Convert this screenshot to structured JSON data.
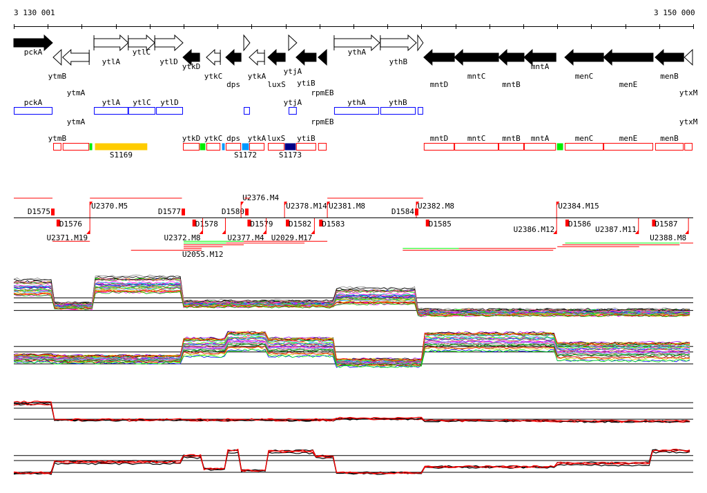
{
  "axis": {
    "start_label": "3 130 001",
    "end_label": "3 150 000",
    "start": 3130001,
    "end": 3150000,
    "tick_step": 1000
  },
  "colors": {
    "gene_forward": "#000000",
    "gene_box": "#0000ff",
    "transcript_box": "#ff0000",
    "green": "#00ee00",
    "yellow": "#ffcc00",
    "light_blue": "#0099ff",
    "navy": "#000088",
    "segment": "#ff0000"
  },
  "genes": [
    {
      "name": "pckA",
      "start": 3130001,
      "end": 3131140,
      "strand": "+",
      "filled": true
    },
    {
      "name": "ytmB",
      "start": 3131160,
      "end": 3131400,
      "strand": "-",
      "filled": false
    },
    {
      "name": "ytmA",
      "start": 3131440,
      "end": 3132220,
      "strand": "-",
      "filled": false
    },
    {
      "name": "ytlA",
      "start": 3132360,
      "end": 3133370,
      "strand": "+",
      "filled": false
    },
    {
      "name": "ytlC",
      "start": 3133370,
      "end": 3134150,
      "strand": "+",
      "filled": false
    },
    {
      "name": "ytlD",
      "start": 3134150,
      "end": 3134980,
      "strand": "+",
      "filled": false
    },
    {
      "name": "ytkD",
      "start": 3134980,
      "end": 3135470,
      "strand": "-",
      "filled": true
    },
    {
      "name": "ytkC",
      "start": 3135670,
      "end": 3136080,
      "strand": "-",
      "filled": false
    },
    {
      "name": "dps",
      "start": 3136240,
      "end": 3136690,
      "strand": "-",
      "filled": true
    },
    {
      "name": "",
      "start": 3136770,
      "end": 3136950,
      "strand": "+",
      "filled": false
    },
    {
      "name": "ytkA",
      "start": 3136930,
      "end": 3137380,
      "strand": "-",
      "filled": false
    },
    {
      "name": "luxS",
      "start": 3137480,
      "end": 3137990,
      "strand": "-",
      "filled": true
    },
    {
      "name": "ytjA",
      "start": 3138090,
      "end": 3138330,
      "strand": "+",
      "filled": false
    },
    {
      "name": "ytiB",
      "start": 3138310,
      "end": 3138900,
      "strand": "-",
      "filled": true
    },
    {
      "name": "rpmEB",
      "start": 3138960,
      "end": 3139210,
      "strand": "-",
      "filled": true
    },
    {
      "name": "ythA",
      "start": 3139430,
      "end": 3140770,
      "strand": "+",
      "filled": false
    },
    {
      "name": "ythB",
      "start": 3140790,
      "end": 3141850,
      "strand": "+",
      "filled": false
    },
    {
      "name": "",
      "start": 3141890,
      "end": 3142050,
      "strand": "+",
      "filled": false
    },
    {
      "name": "mntD",
      "start": 3142070,
      "end": 3142970,
      "strand": "-",
      "filled": true
    },
    {
      "name": "mntC",
      "start": 3142970,
      "end": 3144270,
      "strand": "-",
      "filled": true
    },
    {
      "name": "mntB",
      "start": 3144270,
      "end": 3145020,
      "strand": "-",
      "filled": true
    },
    {
      "name": "mntA",
      "start": 3145020,
      "end": 3145960,
      "strand": "-",
      "filled": true
    },
    {
      "name": "menC",
      "start": 3146220,
      "end": 3147360,
      "strand": "-",
      "filled": true
    },
    {
      "name": "menE",
      "start": 3147360,
      "end": 3148820,
      "strand": "-",
      "filled": true
    },
    {
      "name": "menB",
      "start": 3148880,
      "end": 3149720,
      "strand": "-",
      "filled": true
    },
    {
      "name": "ytxM",
      "start": 3149740,
      "end": 3149980,
      "strand": "-",
      "filled": false
    }
  ],
  "forward_boxes": [
    {
      "name": "pckA",
      "start": 3130001,
      "end": 3131140
    },
    {
      "name": "ytlA",
      "start": 3132360,
      "end": 3133370
    },
    {
      "name": "ytlC",
      "start": 3133370,
      "end": 3134170
    },
    {
      "name": "ytlD",
      "start": 3134190,
      "end": 3134980
    },
    {
      "name": "",
      "start": 3136770,
      "end": 3136950
    },
    {
      "name": "ytjA",
      "start": 3138090,
      "end": 3138330
    },
    {
      "name": "ythA",
      "start": 3139430,
      "end": 3140750
    },
    {
      "name": "ythB",
      "start": 3140790,
      "end": 3141830
    },
    {
      "name": "",
      "start": 3141890,
      "end": 3142050
    }
  ],
  "transcript_boxes": [
    {
      "name": "ytmB",
      "start": 3131160,
      "end": 3131400,
      "kind": "gene"
    },
    {
      "name": "ytmA",
      "start": 3131440,
      "end": 3132220,
      "kind": "gene"
    },
    {
      "name": "",
      "start": 3132220,
      "end": 3132320,
      "kind": "green"
    },
    {
      "name": "S1169",
      "start": 3132380,
      "end": 3133940,
      "kind": "yellow",
      "label_below": true
    },
    {
      "name": "ytkD",
      "start": 3134980,
      "end": 3135470,
      "kind": "gene"
    },
    {
      "name": "",
      "start": 3135470,
      "end": 3135650,
      "kind": "green"
    },
    {
      "name": "ytkC",
      "start": 3135670,
      "end": 3136080,
      "kind": "gene"
    },
    {
      "name": "",
      "start": 3136120,
      "end": 3136220,
      "kind": "light_blue"
    },
    {
      "name": "dps",
      "start": 3136240,
      "end": 3136690,
      "kind": "gene"
    },
    {
      "name": "S1172",
      "start": 3136710,
      "end": 3136930,
      "kind": "light_blue",
      "label_below": true
    },
    {
      "name": "ytkA",
      "start": 3136930,
      "end": 3137380,
      "kind": "gene"
    },
    {
      "name": "luxS",
      "start": 3137480,
      "end": 3137970,
      "kind": "gene"
    },
    {
      "name": "S1173",
      "start": 3137970,
      "end": 3138310,
      "kind": "navy",
      "label_below": true
    },
    {
      "name": "ytiB",
      "start": 3138310,
      "end": 3138900,
      "kind": "gene"
    },
    {
      "name": "rpmEB",
      "start": 3138960,
      "end": 3139210,
      "kind": "gene"
    },
    {
      "name": "mntD",
      "start": 3142070,
      "end": 3142970,
      "kind": "gene"
    },
    {
      "name": "mntC",
      "start": 3142970,
      "end": 3144270,
      "kind": "gene"
    },
    {
      "name": "mntB",
      "start": 3144270,
      "end": 3145020,
      "kind": "gene"
    },
    {
      "name": "mntA",
      "start": 3145020,
      "end": 3145960,
      "kind": "gene"
    },
    {
      "name": "",
      "start": 3145980,
      "end": 3146180,
      "kind": "green"
    },
    {
      "name": "menC",
      "start": 3146220,
      "end": 3147360,
      "kind": "gene"
    },
    {
      "name": "menE",
      "start": 3147360,
      "end": 3148820,
      "kind": "gene"
    },
    {
      "name": "menB",
      "start": 3148880,
      "end": 3149720,
      "kind": "gene"
    },
    {
      "name": "ytxM",
      "start": 3149740,
      "end": 3149980,
      "kind": "gene"
    }
  ],
  "breakpoints_up": [
    {
      "label": "D1575",
      "pos": 3131140,
      "type": "D"
    },
    {
      "label": "U2370.M5",
      "pos": 3132240,
      "type": "U"
    },
    {
      "label": "D1577",
      "pos": 3134980,
      "type": "D"
    },
    {
      "label": "D1580",
      "pos": 3136850,
      "type": "D"
    },
    {
      "label": "U2376.M4",
      "pos": 3136690,
      "type": "U"
    },
    {
      "label": "U2378.M14",
      "pos": 3137970,
      "type": "U"
    },
    {
      "label": "U2381.M8",
      "pos": 3139230,
      "type": "U"
    },
    {
      "label": "D1584",
      "pos": 3141850,
      "type": "D"
    },
    {
      "label": "U2382.M8",
      "pos": 3141850,
      "type": "U"
    },
    {
      "label": "U2384.M15",
      "pos": 3145980,
      "type": "U"
    }
  ],
  "breakpoints_down": [
    {
      "label": "D1576",
      "pos": 3131300,
      "type": "D"
    },
    {
      "label": "U2371.M19",
      "pos": 3132240,
      "type": "U"
    },
    {
      "label": "D1578",
      "pos": 3135300,
      "type": "D"
    },
    {
      "label": "U2372.M8",
      "pos": 3135560,
      "type": "U"
    },
    {
      "label": "U2055.M12",
      "pos": 3136230,
      "type": "U"
    },
    {
      "label": "D1579",
      "pos": 3136920,
      "type": "D"
    },
    {
      "label": "U2377.M4",
      "pos": 3137430,
      "type": "U"
    },
    {
      "label": "D1582",
      "pos": 3138050,
      "type": "D"
    },
    {
      "label": "U2029.M17",
      "pos": 3138850,
      "type": "U"
    },
    {
      "label": "D1583",
      "pos": 3139030,
      "type": "D"
    },
    {
      "label": "D1585",
      "pos": 3142170,
      "type": "D"
    },
    {
      "label": "U2386.M12",
      "pos": 3145980,
      "type": "U"
    },
    {
      "label": "D1586",
      "pos": 3146280,
      "type": "D"
    },
    {
      "label": "U2387.M11",
      "pos": 3148390,
      "type": "U"
    },
    {
      "label": "D1587",
      "pos": 3148830,
      "type": "D"
    },
    {
      "label": "U2388.M8",
      "pos": 3149860,
      "type": "U"
    }
  ],
  "segments": [
    {
      "start": 3130001,
      "end": 3131140,
      "color": "red",
      "row": 0
    },
    {
      "start": 3132240,
      "end": 3134950,
      "color": "red",
      "row": 0
    },
    {
      "start": 3136790,
      "end": 3136950,
      "color": "red",
      "row": 0
    },
    {
      "start": 3139230,
      "end": 3141850,
      "color": "red",
      "row": 0
    },
    {
      "start": 3141850,
      "end": 3142050,
      "color": "red",
      "row": 0
    },
    {
      "start": 3131140,
      "end": 3132240,
      "color": "red",
      "row": 4
    },
    {
      "start": 3135000,
      "end": 3136770,
      "color": "green",
      "row": 4
    },
    {
      "start": 3136770,
      "end": 3139230,
      "color": "red",
      "row": 4
    },
    {
      "start": 3135000,
      "end": 3136250,
      "color": "green",
      "row": 5
    },
    {
      "start": 3136250,
      "end": 3138560,
      "color": "red",
      "row": 5
    },
    {
      "start": 3135000,
      "end": 3136770,
      "color": "red",
      "row": 6
    },
    {
      "start": 3135000,
      "end": 3136150,
      "color": "red",
      "row": 7
    },
    {
      "start": 3135000,
      "end": 3135530,
      "color": "red",
      "row": 8
    },
    {
      "start": 3133450,
      "end": 3135530,
      "color": "red",
      "row": 9
    },
    {
      "start": 3146230,
      "end": 3149600,
      "color": "green",
      "row": 5
    },
    {
      "start": 3149620,
      "end": 3150000,
      "color": "red",
      "row": 5
    },
    {
      "start": 3146150,
      "end": 3149600,
      "color": "red",
      "row": 6
    },
    {
      "start": 3146000,
      "end": 3148410,
      "color": "red",
      "row": 7
    },
    {
      "start": 3141450,
      "end": 3143100,
      "color": "green",
      "row": 8
    },
    {
      "start": 3143100,
      "end": 3145960,
      "color": "red",
      "row": 8
    },
    {
      "start": 3141450,
      "end": 3145880,
      "color": "red",
      "row": 9
    }
  ],
  "expression_panels": [
    {
      "name": "panel-1",
      "traces": 30,
      "colored": true,
      "range": [
        0,
        10
      ],
      "refs": [
        4.8,
        3.8,
        2.2
      ],
      "profile": [
        [
          3130001,
          7.0
        ],
        [
          3131140,
          3.2
        ],
        [
          3132360,
          7.6
        ],
        [
          3134980,
          3.6
        ],
        [
          3139430,
          5.2
        ],
        [
          3141900,
          1.8
        ]
      ]
    },
    {
      "name": "panel-2",
      "traces": 30,
      "colored": true,
      "range": [
        0,
        10
      ],
      "refs": [
        6.0,
        4.9,
        2.5
      ],
      "profile": [
        [
          3130001,
          3.6
        ],
        [
          3131140,
          3.4
        ],
        [
          3134980,
          5.8
        ],
        [
          3136250,
          7.0
        ],
        [
          3137480,
          5.8
        ],
        [
          3139430,
          2.7
        ],
        [
          3142070,
          6.9
        ],
        [
          3146000,
          4.9
        ]
      ]
    },
    {
      "name": "panel-3",
      "traces": 4,
      "colored": false,
      "range": [
        0,
        10
      ],
      "refs": [
        8.9,
        7.2,
        3.8
      ],
      "profile": [
        [
          3130001,
          8.8
        ],
        [
          3131200,
          3.6
        ],
        [
          3139430,
          4.0
        ],
        [
          3142070,
          3.4
        ],
        [
          3146000,
          3.2
        ]
      ]
    },
    {
      "name": "panel-4",
      "traces": 4,
      "colored": false,
      "range": [
        0,
        10
      ],
      "refs": [
        6.4,
        5.1,
        2.0
      ],
      "profile": [
        [
          3130001,
          1.8
        ],
        [
          3131140,
          4.6
        ],
        [
          3134980,
          6.2
        ],
        [
          3135530,
          2.8
        ],
        [
          3136230,
          7.6
        ],
        [
          3136690,
          2.4
        ],
        [
          3137480,
          7.4
        ],
        [
          3138900,
          6.0
        ],
        [
          3139430,
          1.8
        ],
        [
          3142070,
          3.4
        ],
        [
          3146000,
          4.2
        ],
        [
          3148800,
          7.6
        ]
      ]
    }
  ]
}
